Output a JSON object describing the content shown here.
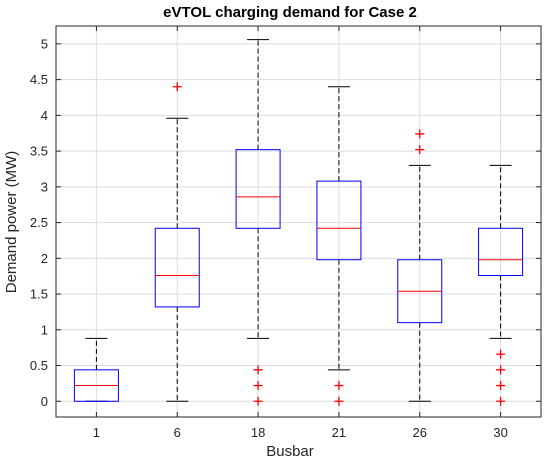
{
  "chart_data": {
    "type": "box",
    "title": "eVTOL charging demand for Case 2",
    "xlabel": "Busbar",
    "ylabel": "Demand power (MW)",
    "ylim": [
      -0.22,
      5.25
    ],
    "yticks": [
      0,
      0.5,
      1,
      1.5,
      2,
      2.5,
      3,
      3.5,
      4,
      4.5,
      5
    ],
    "ytick_labels": [
      "0",
      "0.5",
      "1",
      "1.5",
      "2",
      "2.5",
      "3",
      "3.5",
      "4",
      "4.5",
      "5"
    ],
    "grid": true,
    "categories": [
      "1",
      "6",
      "18",
      "21",
      "26",
      "30"
    ],
    "boxes": [
      {
        "category": "1",
        "whisker_low": 0,
        "q1": 0,
        "median": 0.22,
        "q3": 0.44,
        "whisker_high": 0.88,
        "outliers": []
      },
      {
        "category": "6",
        "whisker_low": 0,
        "q1": 1.32,
        "median": 1.76,
        "q3": 2.42,
        "whisker_high": 3.96,
        "outliers": [
          4.4
        ]
      },
      {
        "category": "18",
        "whisker_low": 0.88,
        "q1": 2.42,
        "median": 2.86,
        "q3": 3.52,
        "whisker_high": 5.06,
        "outliers": [
          0,
          0.22,
          0.44
        ]
      },
      {
        "category": "21",
        "whisker_low": 0.44,
        "q1": 1.98,
        "median": 2.42,
        "q3": 3.08,
        "whisker_high": 4.4,
        "outliers": [
          0,
          0.22
        ]
      },
      {
        "category": "26",
        "whisker_low": 0,
        "q1": 1.1,
        "median": 1.54,
        "q3": 1.98,
        "whisker_high": 3.3,
        "outliers": [
          3.52,
          3.74
        ]
      },
      {
        "category": "30",
        "whisker_low": 0.88,
        "q1": 1.76,
        "median": 1.98,
        "q3": 2.42,
        "whisker_high": 3.3,
        "outliers": [
          0,
          0.22,
          0.44,
          0.66
        ]
      }
    ],
    "colors": {
      "box": "#0000ff",
      "median": "#ff0000",
      "whisker": "#000000",
      "outlier": "#ff0000",
      "grid": "#dcdcdc",
      "axes": "#262626"
    }
  }
}
